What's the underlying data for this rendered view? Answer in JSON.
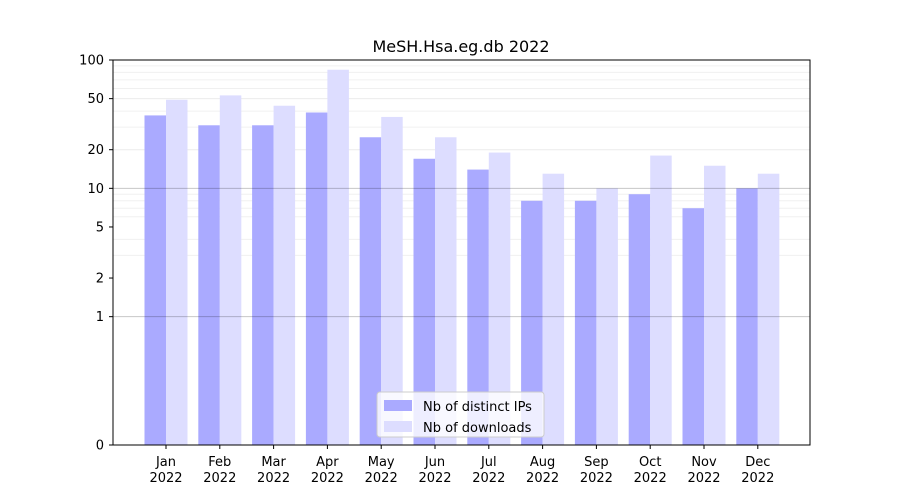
{
  "chart_data": {
    "type": "bar",
    "title": "MeSH.Hsa.eg.db 2022",
    "xlabel": "",
    "ylabel": "",
    "y_scale": "symlog",
    "ylim": [
      0,
      100
    ],
    "y_ticks": [
      {
        "value": 0,
        "label": "0"
      },
      {
        "value": 1,
        "label": "1"
      },
      {
        "value": 2,
        "label": "2"
      },
      {
        "value": 5,
        "label": "5"
      },
      {
        "value": 10,
        "label": "10"
      },
      {
        "value": 20,
        "label": "20"
      },
      {
        "value": 50,
        "label": "50"
      },
      {
        "value": 100,
        "label": "100"
      }
    ],
    "categories": [
      "Jan\n2022",
      "Feb\n2022",
      "Mar\n2022",
      "Apr\n2022",
      "May\n2022",
      "Jun\n2022",
      "Jul\n2022",
      "Aug\n2022",
      "Sep\n2022",
      "Oct\n2022",
      "Nov\n2022",
      "Dec\n2022"
    ],
    "series": [
      {
        "name": "Nb of distinct IPs",
        "color": "#aaaaff",
        "values": [
          37,
          31,
          31,
          39,
          25,
          17,
          14,
          8,
          8,
          9,
          7,
          10
        ]
      },
      {
        "name": "Nb of downloads",
        "color": "#ddddff",
        "values": [
          49,
          53,
          44,
          84,
          36,
          25,
          19,
          13,
          10,
          18,
          15,
          13
        ]
      }
    ],
    "legend_position": "bottom-center",
    "grid": "horizontal-major-and-minor"
  }
}
